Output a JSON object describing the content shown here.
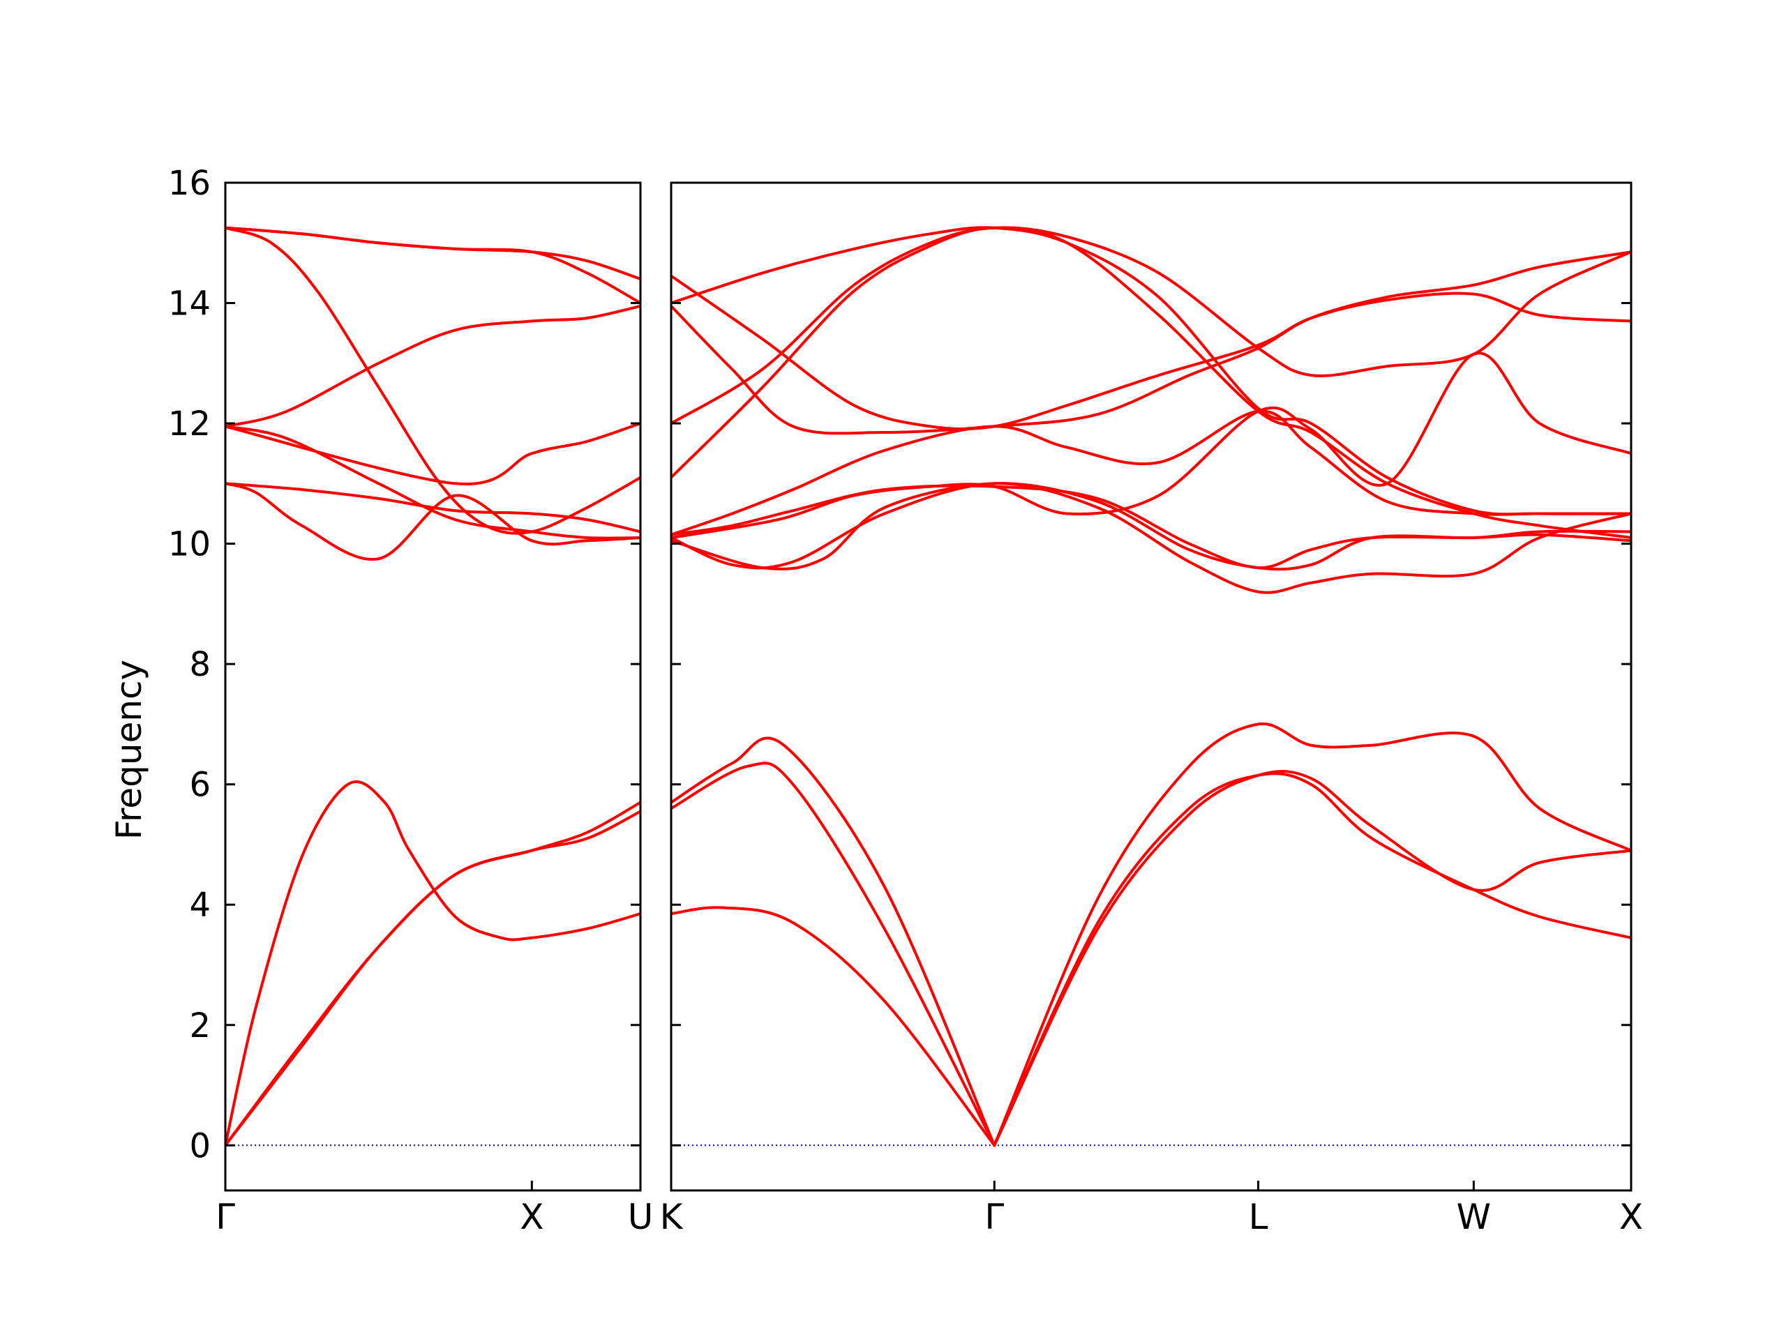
{
  "chart_data": {
    "type": "line",
    "title": "",
    "xlabel": "",
    "ylabel": "Frequency",
    "ylim": [
      -0.75,
      16
    ],
    "yticks": [
      0,
      2,
      4,
      6,
      8,
      10,
      12,
      14,
      16
    ],
    "grid": false,
    "legend": "none",
    "colors": {
      "band": "#ff0000",
      "zero_line": "#0000cd",
      "axes": "#000000",
      "background": "#ffffff"
    },
    "panels": [
      {
        "x_range": [
          0,
          1.3543
        ],
        "ticks": [
          {
            "label": "Γ",
            "x": 0
          },
          {
            "label": "X",
            "x": 1.0
          },
          {
            "label": "U",
            "x": 1.3543
          }
        ],
        "bands": [
          {
            "x": [
              0,
              0.25,
              0.5,
              0.75,
              1.0,
              1.18,
              1.3543
            ],
            "y": [
              0,
              1.7,
              3.3,
              4.5,
              4.9,
              5.2,
              5.7
            ]
          },
          {
            "x": [
              0,
              0.1,
              0.25,
              0.4,
              0.52,
              0.6,
              0.75,
              0.9,
              1.0,
              1.18,
              1.3543
            ],
            "y": [
              0,
              2.3,
              4.8,
              6.0,
              5.7,
              4.9,
              3.8,
              3.45,
              3.45,
              3.6,
              3.85
            ]
          },
          {
            "x": [
              0,
              1.0,
              1.18,
              1.3543
            ],
            "y": [
              0,
              0,
              0,
              0
            ]
          },
          {
            "x": [
              0,
              0.25,
              0.5,
              0.75,
              1.0,
              1.18,
              1.3543
            ],
            "y": [
              0,
              1.65,
              3.3,
              4.5,
              4.9,
              5.1,
              5.55
            ]
          },
          {
            "x": [
              0,
              0.1,
              0.25,
              0.5,
              0.75,
              1.0,
              1.18,
              1.3543
            ],
            "y": [
              11.0,
              10.85,
              10.3,
              9.75,
              10.8,
              10.05,
              10.05,
              10.1
            ]
          },
          {
            "x": [
              0,
              0.25,
              0.5,
              0.75,
              1.0,
              1.18,
              1.3543
            ],
            "y": [
              11.0,
              10.9,
              10.75,
              10.55,
              10.5,
              10.4,
              10.2
            ]
          },
          {
            "x": [
              0,
              0.2,
              0.5,
              0.75,
              1.0,
              1.18,
              1.3543
            ],
            "y": [
              11.95,
              11.75,
              11.0,
              10.4,
              10.2,
              10.1,
              10.1
            ]
          },
          {
            "x": [
              0,
              0.2,
              0.5,
              0.75,
              1.0,
              1.18,
              1.3543
            ],
            "y": [
              11.95,
              12.2,
              13.0,
              13.55,
              13.7,
              13.75,
              13.95
            ]
          },
          {
            "x": [
              0,
              0.15,
              0.3,
              0.5,
              0.7,
              0.85,
              1.0,
              1.18,
              1.3543
            ],
            "y": [
              15.25,
              15.0,
              14.2,
              12.6,
              11.0,
              10.3,
              10.2,
              10.6,
              11.1
            ]
          },
          {
            "x": [
              0,
              0.25,
              0.5,
              0.75,
              1.0,
              1.18,
              1.3543
            ],
            "y": [
              15.25,
              15.15,
              15.0,
              14.9,
              14.85,
              14.7,
              14.4
            ]
          },
          {
            "x": [
              0,
              0.25,
              0.5,
              0.75,
              1.0,
              1.18,
              1.3543
            ],
            "y": [
              15.25,
              15.15,
              15.0,
              14.9,
              14.85,
              14.5,
              14.0
            ]
          },
          {
            "x": [
              0,
              0.75,
              1.0,
              1.18,
              1.3543
            ],
            "y": [
              11.95,
              11.0,
              11.5,
              11.7,
              12.0
            ]
          }
        ]
      },
      {
        "x_range": [
          0,
          3.1504
        ],
        "ticks": [
          {
            "label": "K",
            "x": 0
          },
          {
            "label": "Γ",
            "x": 1.0607
          },
          {
            "label": "L",
            "x": 1.9267
          },
          {
            "label": "W",
            "x": 2.6338
          },
          {
            "label": "X",
            "x": 3.1504
          }
        ],
        "bands": [
          {
            "x": [
              0,
              0.17,
              0.4,
              0.7,
              1.0607
            ],
            "y": [
              3.85,
              3.95,
              3.7,
              2.4,
              0
            ]
          },
          {
            "x": [
              0,
              0.25,
              0.4,
              0.7,
              1.0607
            ],
            "y": [
              5.6,
              6.3,
              6.0,
              3.6,
              0
            ]
          },
          {
            "x": [
              0,
              0.2,
              0.37,
              0.7,
              1.0607
            ],
            "y": [
              5.7,
              6.35,
              6.65,
              4.3,
              0
            ]
          },
          {
            "x": [
              1.0607,
              1.4,
              1.7,
              1.9267,
              2.1,
              2.3,
              2.6338,
              2.85,
              3.1504
            ],
            "y": [
              0,
              3.7,
              5.6,
              6.15,
              6.0,
              5.1,
              4.25,
              3.8,
              3.45
            ]
          },
          {
            "x": [
              1.0607,
              1.4,
              1.7,
              1.9267,
              2.1,
              2.3,
              2.6338,
              2.85,
              3.1504
            ],
            "y": [
              0,
              3.6,
              5.5,
              6.15,
              6.1,
              5.3,
              4.25,
              4.7,
              4.9
            ]
          },
          {
            "x": [
              1.0607,
              1.4,
              1.7,
              1.9267,
              2.1,
              2.3,
              2.6338,
              2.85,
              3.1504
            ],
            "y": [
              0,
              4.1,
              6.3,
              7.0,
              6.65,
              6.65,
              6.8,
              5.6,
              4.9
            ]
          },
          {
            "x": [
              0,
              0.2,
              0.4,
              0.7,
              1.0607,
              1.4,
              1.7,
              1.9267,
              2.1,
              2.3,
              2.6338,
              2.85,
              3.1504
            ],
            "y": [
              10.1,
              9.65,
              9.7,
              10.5,
              11.0,
              10.6,
              9.7,
              9.2,
              9.35,
              9.5,
              9.5,
              10.1,
              10.5
            ]
          },
          {
            "x": [
              0,
              0.3,
              0.5,
              0.7,
              1.0607,
              1.4,
              1.7,
              1.9267,
              2.1,
              2.3,
              2.6338,
              2.85,
              3.1504
            ],
            "y": [
              10.05,
              9.6,
              9.75,
              10.6,
              11.0,
              10.7,
              9.9,
              9.6,
              9.65,
              10.1,
              10.1,
              10.2,
              10.2
            ]
          },
          {
            "x": [
              0,
              0.2,
              0.4,
              0.7,
              1.0607,
              1.4,
              1.7,
              1.9267,
              2.1,
              2.3,
              2.6338,
              2.85,
              3.1504
            ],
            "y": [
              10.15,
              10.3,
              10.55,
              10.9,
              10.95,
              10.75,
              10.0,
              9.6,
              9.9,
              10.1,
              10.1,
              10.15,
              10.05
            ]
          },
          {
            "x": [
              0,
              0.2,
              0.4,
              0.7,
              1.0607,
              1.3,
              1.6,
              1.9267,
              2.1,
              2.35,
              2.6338,
              2.85,
              3.1504
            ],
            "y": [
              10.15,
              10.5,
              10.9,
              11.55,
              11.95,
              11.6,
              11.35,
              12.2,
              11.6,
              10.7,
              10.5,
              10.5,
              10.5
            ]
          },
          {
            "x": [
              0,
              0.2,
              0.4,
              0.7,
              1.0607,
              1.4,
              1.7,
              1.9267,
              2.1,
              2.35,
              2.6338,
              2.85,
              3.1504
            ],
            "y": [
              13.95,
              12.9,
              11.95,
              11.85,
              11.95,
              12.15,
              12.8,
              13.25,
              13.75,
              14.1,
              14.3,
              14.6,
              14.85
            ]
          },
          {
            "x": [
              0,
              0.3,
              0.6,
              0.85,
              1.0607,
              1.3,
              1.6,
              1.9267,
              2.1,
              2.35,
              2.6338,
              2.85,
              3.1504
            ],
            "y": [
              14.45,
              13.4,
              12.3,
              11.95,
              11.95,
              12.3,
              12.8,
              13.3,
              13.75,
              14.05,
              14.15,
              13.8,
              13.7
            ]
          },
          {
            "x": [
              0,
              0.3,
              0.6,
              0.85,
              1.0607,
              1.3,
              1.6,
              1.9267,
              2.1,
              2.35,
              2.6338,
              2.85,
              3.1504
            ],
            "y": [
              14.0,
              14.5,
              14.9,
              15.15,
              15.25,
              15.0,
              14.1,
              12.25,
              12.0,
              11.1,
              10.55,
              10.5,
              10.5
            ]
          },
          {
            "x": [
              0,
              0.3,
              0.6,
              0.85,
              1.0607,
              1.3,
              1.6,
              1.9267,
              2.1,
              2.35,
              2.6338,
              2.85,
              3.1504
            ],
            "y": [
              12.0,
              12.9,
              14.3,
              15.0,
              15.25,
              15.1,
              14.5,
              13.25,
              12.8,
              12.95,
              13.15,
              14.15,
              14.85
            ]
          },
          {
            "x": [
              0,
              0.3,
              0.6,
              0.85,
              1.0607,
              1.3,
              1.6,
              1.9267,
              2.1,
              2.35,
              2.6338,
              2.85,
              3.1504
            ],
            "y": [
              11.1,
              12.6,
              14.2,
              14.95,
              15.25,
              15.0,
              13.8,
              12.2,
              11.85,
              11.0,
              10.5,
              10.3,
              10.1
            ]
          },
          {
            "x": [
              0,
              0.35,
              0.6,
              0.85,
              1.0607,
              1.3,
              1.6,
              1.9267,
              2.1,
              2.35,
              2.6338,
              2.85,
              3.1504
            ],
            "y": [
              10.1,
              10.4,
              10.8,
              10.95,
              10.95,
              10.5,
              10.8,
              12.2,
              11.9,
              11.0,
              13.15,
              12.0,
              11.5
            ]
          },
          {
            "x": [
              0,
              3.1504
            ],
            "y": [
              0,
              0
            ]
          }
        ]
      }
    ]
  }
}
